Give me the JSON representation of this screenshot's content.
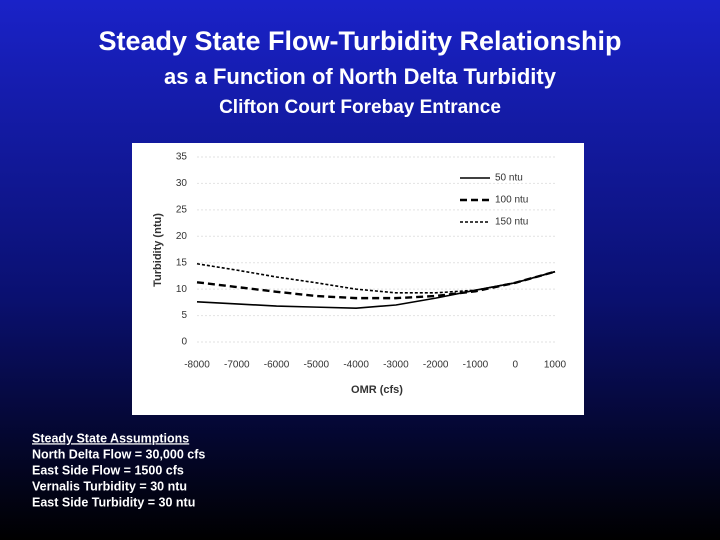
{
  "slide": {
    "title": "Steady State Flow-Turbidity Relationship",
    "subtitle": "as a Function of North Delta Turbidity",
    "subtitle2": "Clifton Court Forebay Entrance"
  },
  "assumptions": {
    "heading": "Steady State Assumptions",
    "lines": [
      "North Delta Flow = 30,000 cfs",
      "East Side Flow = 1500 cfs",
      "Vernalis Turbidity = 30 ntu",
      "East Side Turbidity = 30 ntu"
    ]
  },
  "chart_data": {
    "type": "line",
    "x_label": "OMR (cfs)",
    "y_label": "Turbidity (ntu)",
    "x": [
      -8000,
      -7000,
      -6000,
      -5000,
      -4000,
      -3000,
      -2000,
      -1000,
      0,
      1000
    ],
    "series": [
      {
        "name": "50 ntu",
        "color": "#000000",
        "style": "solid",
        "values": [
          7.6,
          7.2,
          6.8,
          6.6,
          6.4,
          7.0,
          8.3,
          9.8,
          11.2,
          13.3
        ]
      },
      {
        "name": "100 ntu",
        "color": "#000000",
        "style": "dashed",
        "values": [
          11.3,
          10.4,
          9.5,
          8.7,
          8.3,
          8.3,
          8.7,
          9.6,
          11.2,
          13.3
        ]
      },
      {
        "name": "150 ntu",
        "color": "#000000",
        "style": "dotted",
        "values": [
          14.8,
          13.6,
          12.3,
          11.2,
          10.0,
          9.3,
          9.3,
          9.8,
          11.2,
          13.3
        ]
      }
    ],
    "xlim": [
      -8000,
      1000
    ],
    "xticks": [
      -8000,
      -7000,
      -6000,
      -5000,
      -4000,
      -3000,
      -2000,
      -1000,
      0,
      1000
    ],
    "ylim": [
      0,
      35
    ],
    "yticks": [
      0,
      5,
      10,
      15,
      20,
      25,
      30,
      35
    ],
    "grid": true,
    "legend": "top-right"
  }
}
